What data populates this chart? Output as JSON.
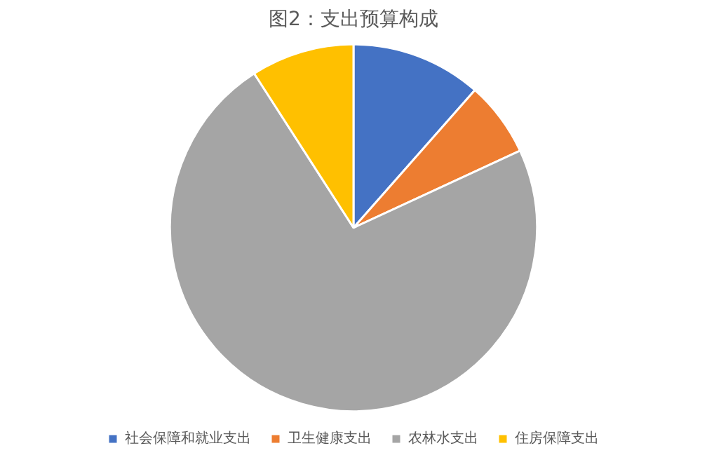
{
  "chart_data": {
    "type": "pie",
    "title": "图2：支出预算构成",
    "categories": [
      "社会保障和就业支出",
      "卫生健康支出",
      "农林水支出",
      "住房保障支出"
    ],
    "values": [
      11.5,
      6.6,
      72.8,
      9.1
    ],
    "colors": [
      "#4472c4",
      "#ed7d31",
      "#a5a5a5",
      "#ffc000"
    ],
    "legend": "bottom"
  }
}
